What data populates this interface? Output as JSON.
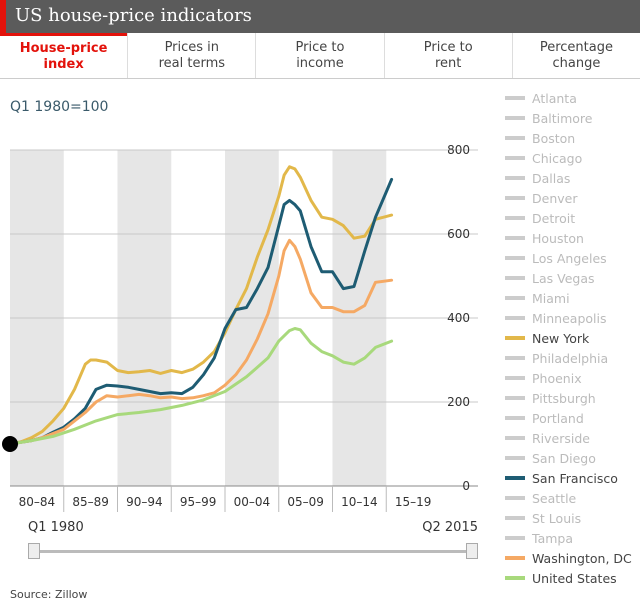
{
  "header": {
    "title": "US house-price indicators"
  },
  "tabs": [
    {
      "label": "House-price\nindex",
      "active": true
    },
    {
      "label": "Prices in\nreal terms",
      "active": false
    },
    {
      "label": "Price to\nincome",
      "active": false
    },
    {
      "label": "Price to\nrent",
      "active": false
    },
    {
      "label": "Percentage\nchange",
      "active": false
    }
  ],
  "subtitle": "Q1 1980=100",
  "legend": [
    {
      "label": "Atlanta",
      "on": false
    },
    {
      "label": "Baltimore",
      "on": false
    },
    {
      "label": "Boston",
      "on": false
    },
    {
      "label": "Chicago",
      "on": false
    },
    {
      "label": "Dallas",
      "on": false
    },
    {
      "label": "Denver",
      "on": false
    },
    {
      "label": "Detroit",
      "on": false
    },
    {
      "label": "Houston",
      "on": false
    },
    {
      "label": "Los Angeles",
      "on": false
    },
    {
      "label": "Las Vegas",
      "on": false
    },
    {
      "label": "Miami",
      "on": false
    },
    {
      "label": "Minneapolis",
      "on": false
    },
    {
      "label": "New York",
      "on": true,
      "color": "#e2b84a"
    },
    {
      "label": "Philadelphia",
      "on": false
    },
    {
      "label": "Phoenix",
      "on": false
    },
    {
      "label": "Pittsburgh",
      "on": false
    },
    {
      "label": "Portland",
      "on": false
    },
    {
      "label": "Riverside",
      "on": false
    },
    {
      "label": "San Diego",
      "on": false
    },
    {
      "label": "San Francisco",
      "on": true,
      "color": "#1e5c73"
    },
    {
      "label": "Seattle",
      "on": false
    },
    {
      "label": "St Louis",
      "on": false
    },
    {
      "label": "Tampa",
      "on": false
    },
    {
      "label": "Washington, DC",
      "on": true,
      "color": "#f5a964"
    },
    {
      "label": "United States",
      "on": true,
      "color": "#a8d97c"
    }
  ],
  "slider": {
    "start_label": "Q1 1980",
    "end_label": "Q2 2015"
  },
  "source": "Source: Zillow",
  "chart_data": {
    "type": "line",
    "xlim": [
      1980,
      2020
    ],
    "ylim": [
      0,
      800
    ],
    "yticks": [
      0,
      200,
      400,
      600,
      800
    ],
    "period_labels": [
      "80–84",
      "85–89",
      "90–94",
      "95–99",
      "00–04",
      "05–09",
      "10–14",
      "15–19"
    ],
    "shaded_periods": [
      [
        1980,
        1985
      ],
      [
        1990,
        1995
      ],
      [
        2000,
        2005
      ],
      [
        2010,
        2015
      ]
    ],
    "grid": true,
    "start_marker": {
      "x": 1980,
      "y": 100
    },
    "series": [
      {
        "name": "New York",
        "color": "#e2b84a",
        "x": [
          1980,
          1981,
          1982,
          1983,
          1984,
          1985,
          1986,
          1987,
          1987.5,
          1988,
          1989,
          1990,
          1991,
          1992,
          1993,
          1994,
          1995,
          1996,
          1997,
          1998,
          1999,
          2000,
          2001,
          2002,
          2003,
          2004,
          2005,
          2005.5,
          2006,
          2006.5,
          2007,
          2008,
          2009,
          2010,
          2011,
          2012,
          2013,
          2014,
          2015.5
        ],
        "y": [
          100,
          105,
          115,
          130,
          155,
          185,
          230,
          290,
          300,
          300,
          295,
          275,
          270,
          272,
          275,
          268,
          275,
          270,
          278,
          295,
          320,
          365,
          420,
          470,
          545,
          610,
          690,
          740,
          760,
          755,
          735,
          680,
          640,
          635,
          620,
          590,
          595,
          635,
          645
        ]
      },
      {
        "name": "San Francisco",
        "color": "#1e5c73",
        "x": [
          1980,
          1981,
          1982,
          1983,
          1984,
          1985,
          1986,
          1987,
          1988,
          1989,
          1990,
          1991,
          1992,
          1993,
          1994,
          1995,
          1996,
          1997,
          1998,
          1999,
          2000,
          2001,
          2002,
          2003,
          2004,
          2005,
          2005.5,
          2006,
          2006.5,
          2007,
          2008,
          2009,
          2010,
          2011,
          2012,
          2013,
          2014,
          2015.5
        ],
        "y": [
          100,
          104,
          108,
          115,
          128,
          140,
          160,
          185,
          230,
          240,
          238,
          235,
          230,
          225,
          220,
          222,
          220,
          235,
          265,
          305,
          375,
          420,
          425,
          470,
          520,
          620,
          670,
          680,
          670,
          655,
          570,
          510,
          510,
          470,
          475,
          560,
          640,
          730
        ]
      },
      {
        "name": "Washington, DC",
        "color": "#f5a964",
        "x": [
          1980,
          1981,
          1982,
          1983,
          1984,
          1985,
          1986,
          1987,
          1988,
          1989,
          1990,
          1991,
          1992,
          1993,
          1994,
          1995,
          1996,
          1997,
          1998,
          1999,
          2000,
          2001,
          2002,
          2003,
          2004,
          2005,
          2005.5,
          2006,
          2006.5,
          2007,
          2008,
          2009,
          2010,
          2011,
          2012,
          2013,
          2014,
          2015.5
        ],
        "y": [
          100,
          104,
          108,
          115,
          125,
          135,
          155,
          175,
          200,
          215,
          212,
          215,
          218,
          215,
          210,
          212,
          208,
          210,
          215,
          222,
          240,
          265,
          300,
          350,
          410,
          500,
          560,
          585,
          570,
          540,
          460,
          425,
          425,
          415,
          415,
          430,
          485,
          490
        ]
      },
      {
        "name": "United States",
        "color": "#a8d97c",
        "x": [
          1980,
          1982,
          1984,
          1986,
          1988,
          1990,
          1992,
          1994,
          1996,
          1998,
          2000,
          2002,
          2004,
          2005,
          2006,
          2006.5,
          2007,
          2008,
          2009,
          2010,
          2011,
          2012,
          2013,
          2014,
          2015.5
        ],
        "y": [
          100,
          108,
          118,
          135,
          155,
          170,
          175,
          182,
          192,
          205,
          225,
          260,
          305,
          345,
          370,
          375,
          372,
          340,
          320,
          310,
          295,
          290,
          305,
          330,
          345
        ]
      }
    ]
  }
}
